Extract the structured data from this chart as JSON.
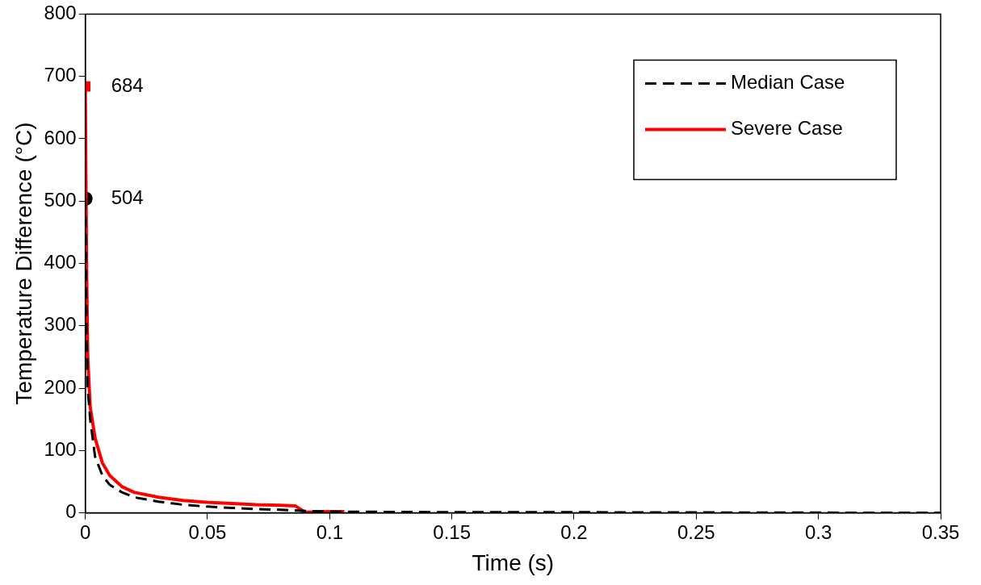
{
  "chart_data": {
    "type": "line",
    "xlabel": "Time (s)",
    "ylabel": "Temperature Difference (°C)",
    "xlim": [
      0,
      0.35
    ],
    "xticks": [
      0,
      0.05,
      0.1,
      0.15,
      0.2,
      0.25,
      0.3,
      0.35
    ],
    "ylim": [
      0,
      800
    ],
    "yticks": [
      0,
      100,
      200,
      300,
      400,
      500,
      600,
      700,
      800
    ],
    "grid": false,
    "legend": "top right",
    "marker": "none",
    "series": [
      {
        "name": "Median Case",
        "color": "#000000",
        "line_style": "dashed",
        "x": [
          0,
          0.0005,
          0.001,
          0.002,
          0.004,
          0.007,
          0.01,
          0.015,
          0.02,
          0.03,
          0.04,
          0.05,
          0.06,
          0.07,
          0.08,
          0.09,
          0.1,
          0.15,
          0.2,
          0.35
        ],
        "values": [
          504,
          300,
          200,
          150,
          90,
          60,
          45,
          33,
          25,
          18,
          13,
          10,
          8,
          6,
          5,
          3,
          2,
          1,
          1,
          0
        ]
      },
      {
        "name": "Severe Case",
        "color": "#ff0000",
        "line_style": "solid",
        "x": [
          0,
          0.0005,
          0.001,
          0.002,
          0.004,
          0.007,
          0.01,
          0.015,
          0.02,
          0.03,
          0.04,
          0.05,
          0.06,
          0.07,
          0.08,
          0.086,
          0.09,
          0.1,
          0.106
        ],
        "values": [
          684,
          400,
          250,
          170,
          120,
          80,
          60,
          42,
          33,
          25,
          20,
          17,
          15,
          13,
          12,
          11,
          1,
          2,
          2
        ]
      },
      {
        "type": "scatter",
        "color": "#000000",
        "marker": "circle",
        "x": [
          0
        ],
        "values": [
          504
        ]
      },
      {
        "type": "scatter",
        "color": "#ff0000",
        "marker": "square",
        "x": [
          0
        ],
        "values": [
          684
        ]
      }
    ],
    "annotations": [
      {
        "text": "684",
        "x": 0,
        "y": 684
      },
      {
        "text": "504",
        "x": 0,
        "y": 504
      }
    ]
  }
}
